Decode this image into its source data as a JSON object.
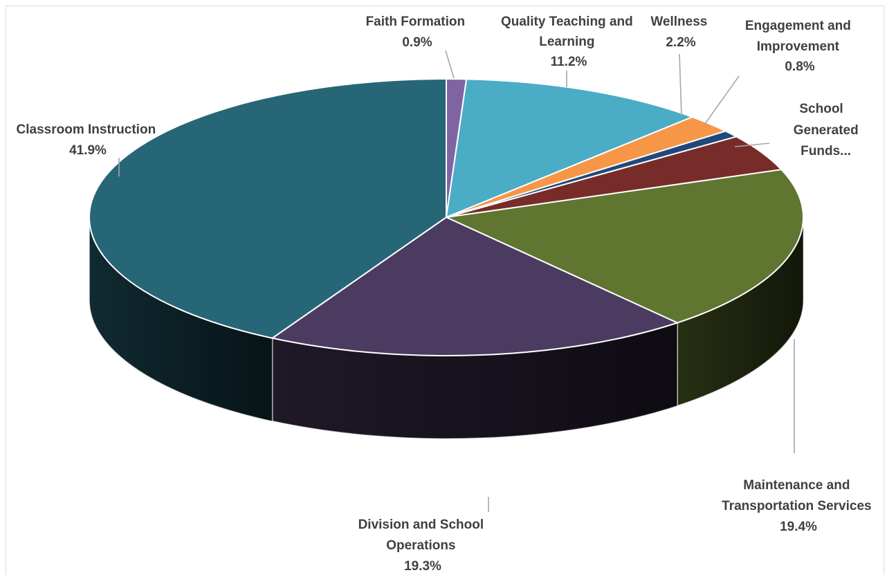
{
  "chart_data": {
    "type": "pie",
    "variant": "3d-exploded-none",
    "slices": [
      {
        "name": "Faith Formation",
        "value": 0.9,
        "label": "0.9%",
        "color": "#8064A2"
      },
      {
        "name": "Quality Teaching and Learning",
        "value": 11.2,
        "label": "11.2%",
        "color": "#4BACC6"
      },
      {
        "name": "Wellness",
        "value": 2.2,
        "label": "2.2%",
        "color": "#F79646"
      },
      {
        "name": "Engagement and Improvement",
        "value": 0.8,
        "label": "0.8%",
        "color": "#1F497D"
      },
      {
        "name": "School Generated Funds...",
        "value": 4.3,
        "label": "",
        "color": "#772C2A"
      },
      {
        "name": "Maintenance and Transportation Services",
        "value": 19.4,
        "label": "19.4%",
        "color": "#5F7530"
      },
      {
        "name": "Division and School Operations",
        "value": 19.3,
        "label": "19.3%",
        "color": "#4C3B60"
      },
      {
        "name": "Classroom Instruction",
        "value": 41.9,
        "label": "41.9%",
        "color": "#276677"
      }
    ]
  },
  "labels": {
    "faith": {
      "line1": "Faith Formation",
      "line2": "0.9%"
    },
    "qtl": {
      "line1": "Quality Teaching and",
      "line2": "Learning",
      "line3": "11.2%"
    },
    "wellness": {
      "line1": "Wellness",
      "line2": "2.2%"
    },
    "engagement": {
      "line1": "Engagement and",
      "line2": "Improvement",
      "line3": "0.8%"
    },
    "sgf": {
      "line1": "School",
      "line2": "Generated",
      "line3": "Funds..."
    },
    "mts": {
      "line1": "Maintenance and",
      "line2": "Transportation Services",
      "line3": "19.4%"
    },
    "dso": {
      "line1": "Division and School",
      "line2": "Operations",
      "line3": "19.3%"
    },
    "ci": {
      "line1": "Classroom Instruction",
      "line2": "41.9%"
    }
  }
}
